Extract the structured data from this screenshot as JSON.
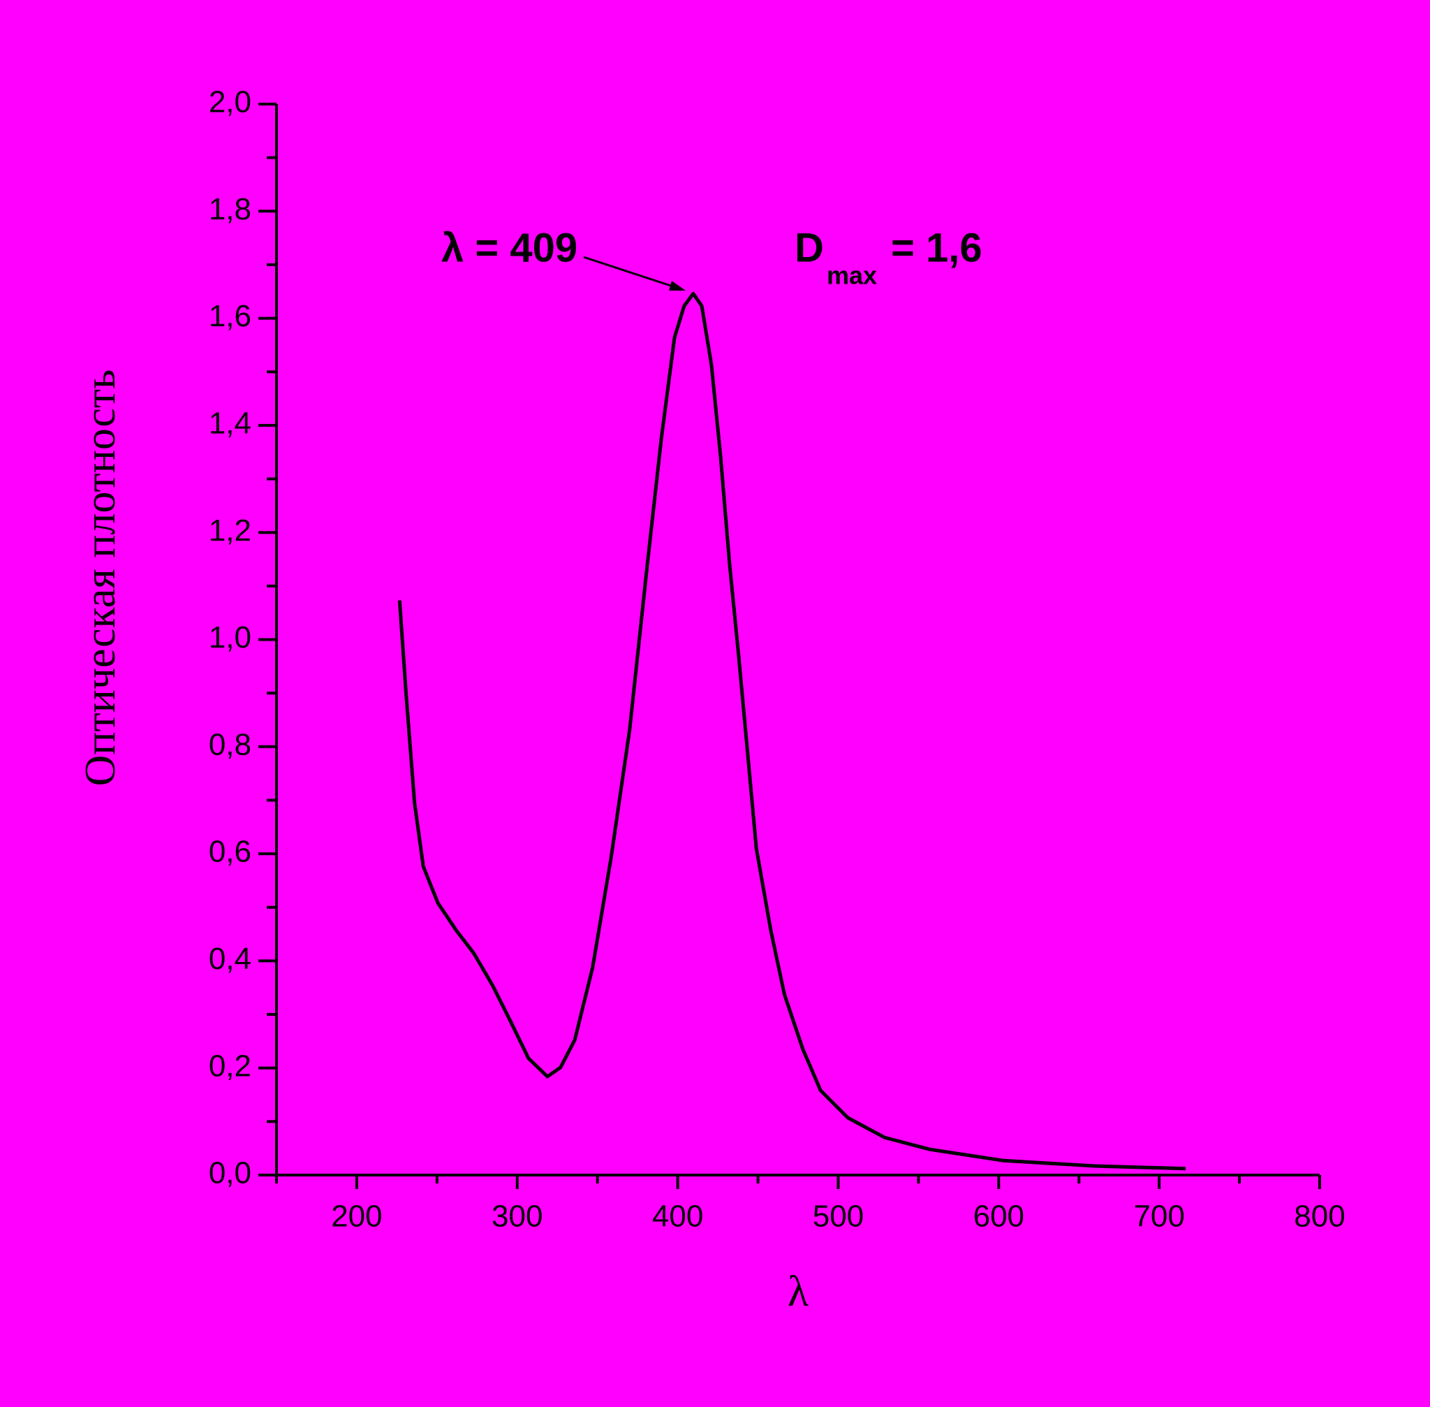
{
  "chart_data": {
    "type": "line",
    "x_label": "λ",
    "y_label": "Оптическая плотность",
    "annotations": [
      "λ = 409",
      "D",
      "max",
      "= 1,6"
    ],
    "xlim": [
      150,
      800
    ],
    "ylim": [
      0,
      2
    ],
    "xticks": [
      200,
      300,
      400,
      500,
      600,
      700,
      800
    ],
    "xminorticks": [
      150,
      250,
      350,
      450,
      550,
      650,
      750
    ],
    "yticks": [
      {
        "value": 0,
        "label": "0,0"
      },
      {
        "value": 0.2,
        "label": "0,2"
      },
      {
        "value": 0.4,
        "label": "0,4"
      },
      {
        "value": 0.6,
        "label": "0,6"
      },
      {
        "value": 0.8,
        "label": "0,8"
      },
      {
        "value": 1.0,
        "label": "1,0"
      },
      {
        "value": 1.2,
        "label": "1,2"
      },
      {
        "value": 1.4,
        "label": "1,4"
      },
      {
        "value": 1.6,
        "label": "1,6"
      },
      {
        "value": 1.8,
        "label": "1,8"
      },
      {
        "value": 2.0,
        "label": "2,0"
      }
    ],
    "yminorticks": [
      0.1,
      0.3,
      0.5,
      0.7,
      0.9,
      1.1,
      1.3,
      1.5,
      1.7,
      1.9
    ],
    "series": [
      {
        "color": "#000000",
        "x": [
          226.7,
          230.7,
          236,
          241.5,
          250.6,
          262,
          273,
          284.7,
          296,
          307,
          318.8,
          327,
          335.8,
          347,
          358.5,
          370,
          381,
          389.8,
          398,
          404,
          409.7,
          415,
          421,
          426.7,
          432.4,
          438,
          443.8,
          449,
          458,
          466.5,
          478,
          489,
          506,
          529,
          557,
          603,
          659.7,
          716.5
        ],
        "values": [
          1.073,
          0.9,
          0.695,
          0.576,
          0.508,
          0.457,
          0.414,
          0.354,
          0.286,
          0.218,
          0.184,
          0.201,
          0.252,
          0.388,
          0.593,
          0.831,
          1.138,
          1.376,
          1.564,
          1.623,
          1.646,
          1.623,
          1.513,
          1.342,
          1.138,
          0.968,
          0.78,
          0.61,
          0.457,
          0.337,
          0.235,
          0.158,
          0.107,
          0.07,
          0.048,
          0.027,
          0.017,
          0.012
        ]
      }
    ]
  }
}
